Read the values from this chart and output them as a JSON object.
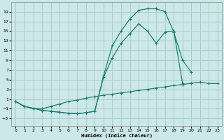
{
  "background_color": "#cce8e8",
  "grid_color": "#aacccc",
  "line_color": "#1a7a6e",
  "xlabel": "Humidex (Indice chaleur)",
  "xlim": [
    -0.5,
    23.5
  ],
  "ylim": [
    -4.5,
    21
  ],
  "xticks": [
    0,
    1,
    2,
    3,
    4,
    5,
    6,
    7,
    8,
    9,
    10,
    11,
    12,
    13,
    14,
    15,
    16,
    17,
    18,
    19,
    20,
    21,
    22,
    23
  ],
  "yticks": [
    -3,
    -1,
    1,
    3,
    5,
    7,
    9,
    11,
    13,
    15,
    17,
    19
  ],
  "curve1_x": [
    0,
    1,
    2,
    3,
    4,
    5,
    6,
    7,
    8,
    9,
    10,
    11,
    12,
    13,
    14,
    15,
    16,
    17,
    18,
    19,
    20
  ],
  "curve1_y": [
    0.5,
    -0.5,
    -0.9,
    -1.3,
    -1.5,
    -1.7,
    -1.9,
    -2.0,
    -1.8,
    -1.5,
    5.8,
    12.0,
    15.0,
    17.5,
    19.3,
    19.6,
    19.6,
    19.0,
    14.8,
    9.0,
    6.5
  ],
  "curve2_x": [
    0,
    1,
    2,
    3,
    4,
    5,
    6,
    7,
    8,
    9,
    10,
    11,
    12,
    13,
    14,
    15,
    16,
    17,
    18,
    19,
    20,
    21,
    22,
    23
  ],
  "curve2_y": [
    0.5,
    -0.5,
    -0.9,
    -1.3,
    -1.5,
    -1.7,
    -1.9,
    -2.0,
    -1.8,
    -1.5,
    5.5,
    9.5,
    12.5,
    14.5,
    16.5,
    15.0,
    12.5,
    14.8,
    15.0,
    4.2,
    null,
    null,
    null,
    null
  ],
  "curve3_x": [
    0,
    1,
    2,
    3,
    4,
    5,
    6,
    7,
    8,
    9,
    10,
    11,
    12,
    13,
    14,
    15,
    16,
    17,
    18,
    19,
    20,
    21,
    22,
    23
  ],
  "curve3_y": [
    0.5,
    -0.5,
    -0.9,
    -1.0,
    -0.5,
    0.0,
    0.5,
    0.8,
    1.2,
    1.5,
    1.8,
    2.0,
    2.3,
    2.5,
    2.8,
    3.0,
    3.3,
    3.5,
    3.8,
    4.0,
    4.3,
    4.5,
    4.2,
    4.2
  ]
}
